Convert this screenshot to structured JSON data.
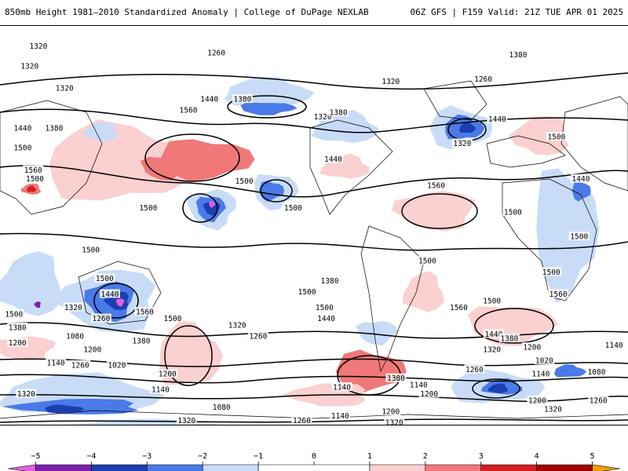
{
  "header": {
    "title_left": "850mb Height 1981–2010 Standardized Anomaly | College of DuPage NEXLAB",
    "title_right": "06Z GFS | F159 Valid: 21Z TUE APR 01 2025"
  },
  "legend": {
    "ticks": [
      {
        "value": -5,
        "label": "−5"
      },
      {
        "value": -4,
        "label": "−4"
      },
      {
        "value": -3,
        "label": "−3"
      },
      {
        "value": -2,
        "label": "−2"
      },
      {
        "value": -1,
        "label": "−1"
      },
      {
        "value": 0,
        "label": "0"
      },
      {
        "value": 1,
        "label": "1"
      },
      {
        "value": 2,
        "label": "2"
      },
      {
        "value": 3,
        "label": "3"
      },
      {
        "value": 4,
        "label": "4"
      },
      {
        "value": 5,
        "label": "5"
      }
    ],
    "range": [
      -5.5,
      5.5
    ],
    "colors": {
      "m5": "#e060e0",
      "m4": "#8020b0",
      "m3": "#1a3fb0",
      "m2": "#4a7ae8",
      "m1": "#c8dcf8",
      "zero": "#ffffff",
      "p1": "#fad0d0",
      "p2": "#f07878",
      "p3": "#d02020",
      "p4": "#a00000",
      "p5": "#f0a000"
    }
  },
  "contour_labels": [
    {
      "text": "1320",
      "lon": -158,
      "lat": 81
    },
    {
      "text": "1320",
      "lon": -163,
      "lat": 72
    },
    {
      "text": "1320",
      "lon": -143,
      "lat": 62
    },
    {
      "text": "1440",
      "lon": -167,
      "lat": 44
    },
    {
      "text": "1380",
      "lon": -149,
      "lat": 44
    },
    {
      "text": "1500",
      "lon": -167,
      "lat": 35
    },
    {
      "text": "1560",
      "lon": -161,
      "lat": 25
    },
    {
      "text": "1500",
      "lon": -160,
      "lat": 21
    },
    {
      "text": "1260",
      "lon": -56,
      "lat": 78
    },
    {
      "text": "1440",
      "lon": -60,
      "lat": 57
    },
    {
      "text": "1380",
      "lon": -41,
      "lat": 57
    },
    {
      "text": "1560",
      "lon": -72,
      "lat": 52
    },
    {
      "text": "1500",
      "lon": -40,
      "lat": 20
    },
    {
      "text": "1320",
      "lon": 5,
      "lat": 49
    },
    {
      "text": "1380",
      "lon": 14,
      "lat": 51
    },
    {
      "text": "1440",
      "lon": 11,
      "lat": 30
    },
    {
      "text": "1320",
      "lon": 44,
      "lat": 65
    },
    {
      "text": "1260",
      "lon": 97,
      "lat": 66
    },
    {
      "text": "1380",
      "lon": 117,
      "lat": 77
    },
    {
      "text": "1440",
      "lon": 105,
      "lat": 48
    },
    {
      "text": "1320",
      "lon": 85,
      "lat": 37
    },
    {
      "text": "1500",
      "lon": 139,
      "lat": 40
    },
    {
      "text": "1440",
      "lon": 153,
      "lat": 21
    },
    {
      "text": "1500",
      "lon": 114,
      "lat": 6
    },
    {
      "text": "1500",
      "lon": 152,
      "lat": -5
    },
    {
      "text": "1560",
      "lon": 70,
      "lat": 18
    },
    {
      "text": "1500",
      "lon": -95,
      "lat": 8
    },
    {
      "text": "1500",
      "lon": -12,
      "lat": 8
    },
    {
      "text": "1500",
      "lon": -128,
      "lat": -11
    },
    {
      "text": "1500",
      "lon": -120,
      "lat": -24
    },
    {
      "text": "1440",
      "lon": -117,
      "lat": -31
    },
    {
      "text": "1320",
      "lon": -138,
      "lat": -37
    },
    {
      "text": "1500",
      "lon": -172,
      "lat": -40
    },
    {
      "text": "1380",
      "lon": -170,
      "lat": -46
    },
    {
      "text": "1200",
      "lon": -170,
      "lat": -53
    },
    {
      "text": "1260",
      "lon": -122,
      "lat": -42
    },
    {
      "text": "1080",
      "lon": -137,
      "lat": -50
    },
    {
      "text": "1140",
      "lon": -148,
      "lat": -62
    },
    {
      "text": "1260",
      "lon": -134,
      "lat": -63
    },
    {
      "text": "1020",
      "lon": -113,
      "lat": -63
    },
    {
      "text": "1200",
      "lon": -84,
      "lat": -67
    },
    {
      "text": "1140",
      "lon": -88,
      "lat": -74
    },
    {
      "text": "1320",
      "lon": -165,
      "lat": -76
    },
    {
      "text": "1080",
      "lon": -53,
      "lat": -82
    },
    {
      "text": "1320",
      "lon": -73,
      "lat": -88
    },
    {
      "text": "1260",
      "lon": -7,
      "lat": -88
    },
    {
      "text": "1140",
      "lon": 15,
      "lat": -86
    },
    {
      "text": "1200",
      "lon": 44,
      "lat": -84
    },
    {
      "text": "1320",
      "lon": 46,
      "lat": -89
    },
    {
      "text": "1560",
      "lon": -97,
      "lat": -39
    },
    {
      "text": "1500",
      "lon": -81,
      "lat": -42
    },
    {
      "text": "1380",
      "lon": -99,
      "lat": -52
    },
    {
      "text": "1200",
      "lon": -127,
      "lat": -56
    },
    {
      "text": "1320",
      "lon": -44,
      "lat": -45
    },
    {
      "text": "1260",
      "lon": -32,
      "lat": -50
    },
    {
      "text": "1500",
      "lon": 6,
      "lat": -37
    },
    {
      "text": "1440",
      "lon": 7,
      "lat": -42
    },
    {
      "text": "1380",
      "lon": 47,
      "lat": -69
    },
    {
      "text": "1260",
      "lon": 92,
      "lat": -65
    },
    {
      "text": "1140",
      "lon": 60,
      "lat": -72
    },
    {
      "text": "1200",
      "lon": 66,
      "lat": -76
    },
    {
      "text": "1500",
      "lon": 65,
      "lat": -16
    },
    {
      "text": "1500",
      "lon": 136,
      "lat": -21
    },
    {
      "text": "1500",
      "lon": 102,
      "lat": -34
    },
    {
      "text": "1320",
      "lon": 102,
      "lat": -56
    },
    {
      "text": "1440",
      "lon": 103,
      "lat": -49
    },
    {
      "text": "1560",
      "lon": 83,
      "lat": -37
    },
    {
      "text": "1380",
      "lon": 112,
      "lat": -51
    },
    {
      "text": "1200",
      "lon": 125,
      "lat": -55
    },
    {
      "text": "1020",
      "lon": 132,
      "lat": -61
    },
    {
      "text": "1140",
      "lon": 130,
      "lat": -67
    },
    {
      "text": "1080",
      "lon": 162,
      "lat": -66
    },
    {
      "text": "1200",
      "lon": 128,
      "lat": -79
    },
    {
      "text": "1320",
      "lon": 137,
      "lat": -83
    },
    {
      "text": "1260",
      "lon": 163,
      "lat": -79
    },
    {
      "text": "1140",
      "lon": 172,
      "lat": -54
    },
    {
      "text": "1560",
      "lon": 140,
      "lat": -31
    },
    {
      "text": "1500",
      "lon": -4,
      "lat": -30
    },
    {
      "text": "1380",
      "lon": 9,
      "lat": -25
    },
    {
      "text": "1140",
      "lon": 16,
      "lat": -73
    }
  ]
}
